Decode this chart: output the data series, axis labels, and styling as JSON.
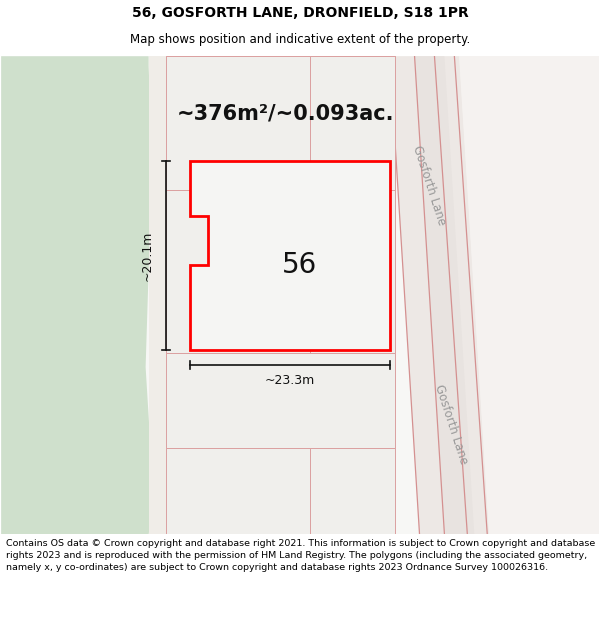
{
  "title": "56, GOSFORTH LANE, DRONFIELD, S18 1PR",
  "subtitle": "Map shows position and indicative extent of the property.",
  "area_text": "~376m²/~0.093ac.",
  "width_label": "~23.3m",
  "height_label": "~20.1m",
  "house_number": "56",
  "footer_text": "Contains OS data © Crown copyright and database right 2021. This information is subject to Crown copyright and database rights 2023 and is reproduced with the permission of HM Land Registry. The polygons (including the associated geometry, namely x, y co-ordinates) are subject to Crown copyright and database rights 2023 Ordnance Survey 100026316.",
  "title_fontsize": 10,
  "subtitle_fontsize": 8.5,
  "footer_fontsize": 6.8,
  "area_fontsize": 15,
  "house_fontsize": 20,
  "dim_fontsize": 9
}
